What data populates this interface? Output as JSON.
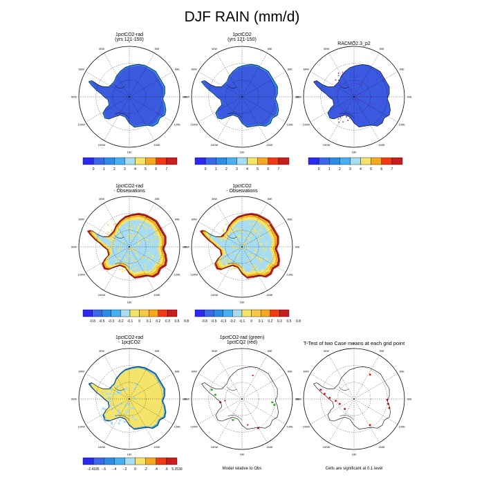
{
  "figure": {
    "title": "DJF RAIN (mm/d)",
    "lon_labels": [
      "0",
      "30E",
      "60E",
      "90E",
      "120E",
      "150E",
      "180",
      "150W",
      "120W",
      "90W",
      "60W",
      "30W"
    ]
  },
  "panels": [
    {
      "id": "p1",
      "title_lines": [
        "1pctCO2-rad",
        "(yrs 121-150)"
      ],
      "field": "rain_low",
      "colorbar": "cb_abs"
    },
    {
      "id": "p2",
      "title_lines": [
        "1pctCO2",
        "(yrs 121-150)"
      ],
      "field": "rain_low",
      "colorbar": "cb_abs"
    },
    {
      "id": "p3",
      "title_lines": [
        "RACMO2.3_p2"
      ],
      "field": "rain_obs",
      "colorbar": "cb_abs"
    },
    {
      "id": "p4",
      "title_lines": [
        "1pctCO2-rad",
        "- Observations"
      ],
      "field": "diff_obs",
      "colorbar": "cb_diff"
    },
    {
      "id": "p5",
      "title_lines": [
        "1pctCO2",
        "- Observations"
      ],
      "field": "diff_obs",
      "colorbar": "cb_diff"
    },
    {
      "id": "p6",
      "title_lines": [
        "1pctCO2-rad",
        "- 1pctCO2"
      ],
      "field": "diff_models",
      "colorbar": "cb_pct"
    },
    {
      "id": "p7",
      "title_lines": [
        "1pctCO2-rad (green)",
        "1pctCO2 (red)"
      ],
      "field": "relative",
      "footnote": "Model relative to Obs"
    },
    {
      "id": "p8",
      "title_lines": [
        "T-Test of two Case means at each grid point"
      ],
      "field": "ttest",
      "footnote": "Cells are significant at 0.1 level"
    }
  ],
  "colorbars": {
    "cb_abs": {
      "colors": [
        "#2a2af0",
        "#3a68e8",
        "#2c8ce6",
        "#48b0f0",
        "#a8dcf0",
        "#f5e46a",
        "#f6a81e",
        "#ef3a14",
        "#c81e1e"
      ],
      "labels": [
        "0",
        "1",
        "2",
        "3",
        "4",
        "5",
        "6",
        "7"
      ]
    },
    "cb_diff": {
      "colors": [
        "#2a2af0",
        "#3a68e8",
        "#2c8ce6",
        "#48b0f0",
        "#a8dcf0",
        "#f5e46a",
        "#f6c84a",
        "#f6a81e",
        "#ef3a14",
        "#c81e1e"
      ],
      "labels": [
        "-0.8",
        "-0.5",
        "-0.3",
        "-0.2",
        "-0.1",
        "0",
        "0.1",
        "0.2",
        "0.3",
        "0.5",
        "0.8"
      ]
    },
    "cb_pct": {
      "colors": [
        "#2a2af0",
        "#3a68e8",
        "#2c8ce6",
        "#48b0f0",
        "#a8dcf0",
        "#f5e46a",
        "#f6a81e",
        "#ef3a14",
        "#c81e1e"
      ],
      "labels": [
        "-2.4185",
        "-.6",
        "-.4",
        "-.2",
        "0",
        ".2",
        ".4",
        ".6",
        "5.2539"
      ]
    }
  },
  "field_colors": {
    "rain_low": {
      "interior": "#3a5ae0",
      "coast": "#46a6ee"
    },
    "rain_obs": {
      "interior": "#3a5ae0",
      "speckle": "#5a3ae8",
      "coast": "#3a5ae0"
    },
    "diff_obs": {
      "interior": "#a8dcf0",
      "mid": "#f5e46a",
      "edge": "#f6a81e",
      "rim": "#c81e1e"
    },
    "diff_models": {
      "interior": "#f5e46a",
      "coast": "#a8dcf0",
      "edge": "#46a6ee"
    },
    "relative": {
      "green": "#22aa22",
      "red": "#dd1111"
    },
    "ttest": {
      "red": "#dd1111"
    }
  }
}
